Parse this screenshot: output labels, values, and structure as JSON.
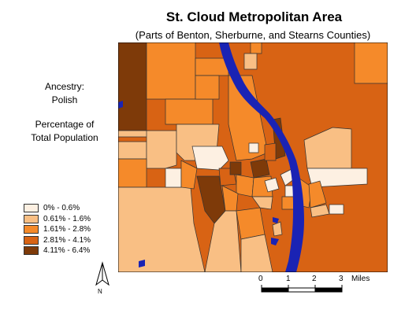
{
  "title": "St. Cloud Metropolitan Area",
  "subtitle": "(Parts of Benton, Sherburne, and Stearns Counties)",
  "variable": {
    "line1": "Ancestry:",
    "line2": "Polish",
    "line3": "Percentage of",
    "line4": "Total Population"
  },
  "legend": [
    {
      "label": "0% - 0.6%",
      "color": "#fdf0e2"
    },
    {
      "label": "0.61% - 1.6%",
      "color": "#f9bf84"
    },
    {
      "label": "1.61% - 2.8%",
      "color": "#f58a2a"
    },
    {
      "label": "2.81% - 4.1%",
      "color": "#d86314"
    },
    {
      "label": "4.11% - 6.4%",
      "color": "#7e3a09"
    }
  ],
  "north_arrow": {
    "label": "N"
  },
  "scale": {
    "ticks": [
      "0",
      "1",
      "2",
      "3"
    ],
    "unit": "Miles"
  },
  "colors": {
    "water": "#1a23b4",
    "boundary": "#333333"
  }
}
